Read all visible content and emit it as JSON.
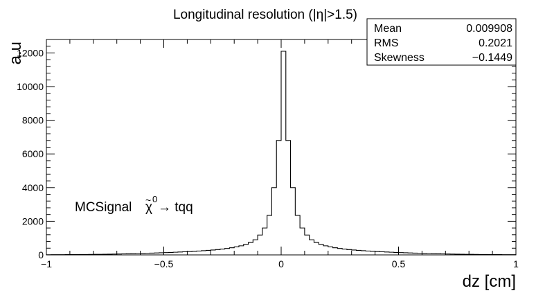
{
  "chart_data": {
    "type": "histogram",
    "title": "Longitudinal resolution (|η|>1.5)",
    "xlabel": "dz [cm]",
    "ylabel": "a.u",
    "xlim": [
      -1,
      1
    ],
    "ylim": [
      0,
      12800
    ],
    "xticks": [
      -1,
      -0.5,
      0,
      0.5,
      1
    ],
    "xtick_labels": [
      "−1",
      "−0.5",
      "0",
      "0.5",
      "1"
    ],
    "yticks": [
      0,
      2000,
      4000,
      6000,
      8000,
      10000,
      12000
    ],
    "ytick_labels": [
      "0",
      "2000",
      "4000",
      "6000",
      "8000",
      "10000",
      "12000"
    ],
    "bin_width": 0.02,
    "bins": [
      {
        "x": -1.0,
        "y": 10
      },
      {
        "x": -0.98,
        "y": 12
      },
      {
        "x": -0.96,
        "y": 14
      },
      {
        "x": -0.94,
        "y": 15
      },
      {
        "x": -0.92,
        "y": 17
      },
      {
        "x": -0.9,
        "y": 19
      },
      {
        "x": -0.88,
        "y": 21
      },
      {
        "x": -0.86,
        "y": 23
      },
      {
        "x": -0.84,
        "y": 26
      },
      {
        "x": -0.82,
        "y": 29
      },
      {
        "x": -0.8,
        "y": 32
      },
      {
        "x": -0.78,
        "y": 36
      },
      {
        "x": -0.76,
        "y": 40
      },
      {
        "x": -0.74,
        "y": 45
      },
      {
        "x": -0.72,
        "y": 50
      },
      {
        "x": -0.7,
        "y": 56
      },
      {
        "x": -0.68,
        "y": 62
      },
      {
        "x": -0.66,
        "y": 68
      },
      {
        "x": -0.64,
        "y": 75
      },
      {
        "x": -0.62,
        "y": 82
      },
      {
        "x": -0.6,
        "y": 90
      },
      {
        "x": -0.58,
        "y": 98
      },
      {
        "x": -0.56,
        "y": 107
      },
      {
        "x": -0.54,
        "y": 116
      },
      {
        "x": -0.52,
        "y": 126
      },
      {
        "x": -0.5,
        "y": 137
      },
      {
        "x": -0.48,
        "y": 148
      },
      {
        "x": -0.46,
        "y": 160
      },
      {
        "x": -0.44,
        "y": 172
      },
      {
        "x": -0.42,
        "y": 185
      },
      {
        "x": -0.4,
        "y": 200
      },
      {
        "x": -0.38,
        "y": 215
      },
      {
        "x": -0.36,
        "y": 232
      },
      {
        "x": -0.34,
        "y": 250
      },
      {
        "x": -0.32,
        "y": 270
      },
      {
        "x": -0.3,
        "y": 292
      },
      {
        "x": -0.28,
        "y": 318
      },
      {
        "x": -0.26,
        "y": 348
      },
      {
        "x": -0.24,
        "y": 383
      },
      {
        "x": -0.22,
        "y": 425
      },
      {
        "x": -0.2,
        "y": 475
      },
      {
        "x": -0.18,
        "y": 540
      },
      {
        "x": -0.16,
        "y": 625
      },
      {
        "x": -0.14,
        "y": 740
      },
      {
        "x": -0.12,
        "y": 900
      },
      {
        "x": -0.1,
        "y": 1180
      },
      {
        "x": -0.08,
        "y": 1600
      },
      {
        "x": -0.06,
        "y": 2350
      },
      {
        "x": -0.04,
        "y": 4000
      },
      {
        "x": -0.02,
        "y": 6800
      },
      {
        "x": 0.0,
        "y": 12100
      },
      {
        "x": 0.02,
        "y": 6800
      },
      {
        "x": 0.04,
        "y": 4000
      },
      {
        "x": 0.06,
        "y": 2350
      },
      {
        "x": 0.08,
        "y": 1600
      },
      {
        "x": 0.1,
        "y": 1180
      },
      {
        "x": 0.12,
        "y": 900
      },
      {
        "x": 0.14,
        "y": 740
      },
      {
        "x": 0.16,
        "y": 625
      },
      {
        "x": 0.18,
        "y": 540
      },
      {
        "x": 0.2,
        "y": 475
      },
      {
        "x": 0.22,
        "y": 425
      },
      {
        "x": 0.24,
        "y": 383
      },
      {
        "x": 0.26,
        "y": 348
      },
      {
        "x": 0.28,
        "y": 318
      },
      {
        "x": 0.3,
        "y": 292
      },
      {
        "x": 0.32,
        "y": 270
      },
      {
        "x": 0.34,
        "y": 250
      },
      {
        "x": 0.36,
        "y": 232
      },
      {
        "x": 0.38,
        "y": 215
      },
      {
        "x": 0.4,
        "y": 200
      },
      {
        "x": 0.42,
        "y": 185
      },
      {
        "x": 0.44,
        "y": 172
      },
      {
        "x": 0.46,
        "y": 160
      },
      {
        "x": 0.48,
        "y": 148
      },
      {
        "x": 0.5,
        "y": 137
      },
      {
        "x": 0.52,
        "y": 126
      },
      {
        "x": 0.54,
        "y": 116
      },
      {
        "x": 0.56,
        "y": 107
      },
      {
        "x": 0.58,
        "y": 98
      },
      {
        "x": 0.6,
        "y": 90
      },
      {
        "x": 0.62,
        "y": 82
      },
      {
        "x": 0.64,
        "y": 75
      },
      {
        "x": 0.66,
        "y": 68
      },
      {
        "x": 0.68,
        "y": 62
      },
      {
        "x": 0.7,
        "y": 56
      },
      {
        "x": 0.72,
        "y": 50
      },
      {
        "x": 0.74,
        "y": 45
      },
      {
        "x": 0.76,
        "y": 40
      },
      {
        "x": 0.78,
        "y": 36
      },
      {
        "x": 0.8,
        "y": 32
      },
      {
        "x": 0.82,
        "y": 29
      },
      {
        "x": 0.84,
        "y": 26
      },
      {
        "x": 0.86,
        "y": 23
      },
      {
        "x": 0.88,
        "y": 21
      },
      {
        "x": 0.9,
        "y": 19
      },
      {
        "x": 0.92,
        "y": 17
      },
      {
        "x": 0.94,
        "y": 15
      },
      {
        "x": 0.96,
        "y": 14
      },
      {
        "x": 0.98,
        "y": 12
      }
    ],
    "stats": [
      {
        "label": "Mean",
        "value": "0.009908"
      },
      {
        "label": "RMS",
        "value": "0.2021"
      },
      {
        "label": "Skewness",
        "value": "−0.1449"
      }
    ],
    "stats_box_placement": "top-right",
    "annotation": {
      "prefix": "MCSignal ",
      "chi": "χ",
      "tilde": "~",
      "superscript": "0",
      "suffix": " → tqq"
    },
    "grid": false,
    "line_color": "#000000"
  }
}
